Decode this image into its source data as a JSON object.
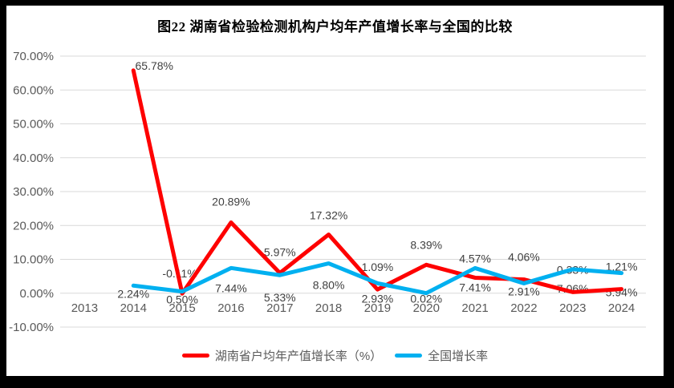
{
  "frame": {
    "border_color": "#000000",
    "page_bg": "#FFFFFF"
  },
  "chart_data": {
    "type": "line",
    "title": "图22 湖南省检验检测机构户均年产值增长率与全国的比较",
    "categories": [
      "2013",
      "2014",
      "2015",
      "2016",
      "2017",
      "2018",
      "2019",
      "2020",
      "2021",
      "2022",
      "2023",
      "2024"
    ],
    "series": [
      {
        "name": "湖南省户均年产值增长率（%）",
        "color": "#FE0000",
        "values": [
          null,
          65.78,
          -0.11,
          20.89,
          5.97,
          17.32,
          1.09,
          8.39,
          4.57,
          4.06,
          0.33,
          1.21
        ],
        "label_position": "above",
        "label_dy": [
          null,
          -6,
          -25,
          -26,
          -26,
          -24,
          -28,
          -25,
          -24,
          -28,
          -28,
          -28
        ],
        "label_dx": [
          null,
          26,
          -3,
          0,
          0,
          0,
          0,
          0,
          0,
          0,
          0,
          0
        ]
      },
      {
        "name": "全国增长率",
        "color": "#00B0F0",
        "values": [
          null,
          2.24,
          0.5,
          7.44,
          5.33,
          8.8,
          2.93,
          0.02,
          7.41,
          2.91,
          7.06,
          5.94
        ],
        "label_position": "below",
        "label_dy": [
          null,
          10,
          10,
          25,
          28,
          27,
          19,
          7,
          24,
          10,
          24,
          24
        ],
        "label_dx": [
          null,
          0,
          0,
          0,
          0,
          0,
          0,
          0,
          0,
          0,
          0,
          0
        ]
      }
    ],
    "ylim": [
      -10,
      70
    ],
    "ytick_step": 10,
    "ytick_decimals": 2,
    "ytick_suffix": "%",
    "data_label_decimals": 2,
    "data_label_suffix": "%",
    "grid": true,
    "legend_position": "bottom",
    "colors": {
      "gridline": "#D9D9D9",
      "axis_text": "#595959",
      "data_label": "#404040",
      "title": "#000000",
      "legend_text": "#595959"
    }
  }
}
